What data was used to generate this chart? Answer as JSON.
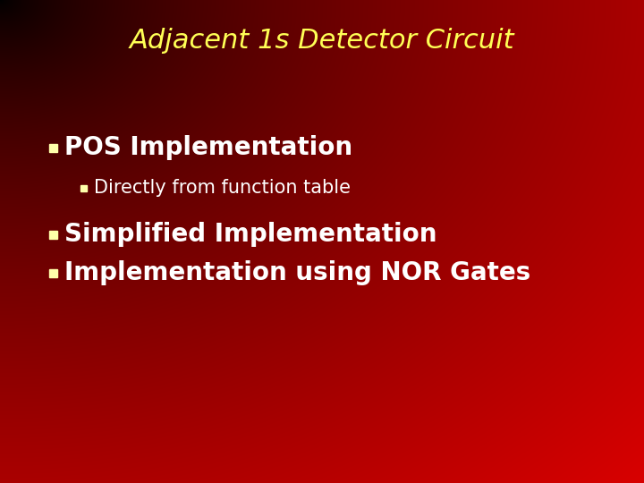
{
  "title": "Adjacent 1s Detector Circuit",
  "title_color": "#FFFF55",
  "title_fontsize": 22,
  "bullet1_text": "POS Implementation",
  "bullet1_color": "#FFFFFF",
  "bullet1_fontsize": 20,
  "sub_bullet1_text": "Directly from function table",
  "sub_bullet1_color": "#FFFFFF",
  "sub_bullet1_fontsize": 15,
  "bullet2_text": "Simplified Implementation",
  "bullet2_color": "#FFFFFF",
  "bullet2_fontsize": 20,
  "bullet3_text": "Implementation using NOR Gates",
  "bullet3_color": "#FFFFFF",
  "bullet3_fontsize": 20,
  "bullet_square_color": "#FFFFAA",
  "sub_bullet_square_color": "#FFFFAA",
  "figwidth": 7.2,
  "figheight": 5.4,
  "dpi": 100
}
